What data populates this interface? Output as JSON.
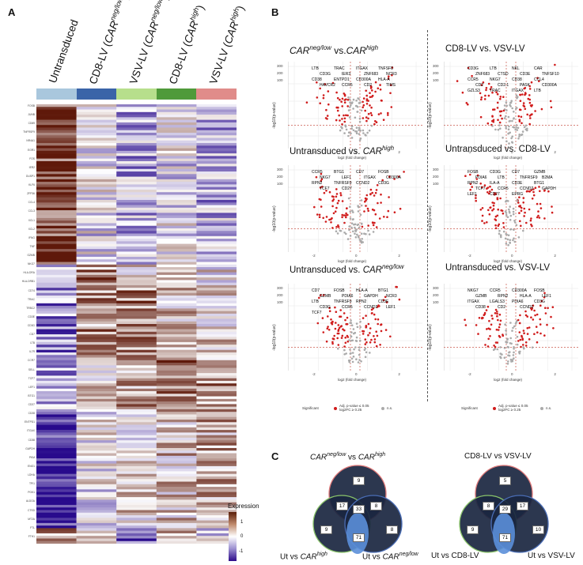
{
  "panelA": {
    "label": "A",
    "columns": [
      {
        "base": "Untransduced",
        "italic": "",
        "suffix": ""
      },
      {
        "base": "CD8-LV (",
        "italic": "CAR",
        "sup": "neg/low",
        "suffix": ")"
      },
      {
        "base": "VSV-LV (",
        "italic": "CAR",
        "sup": "neg/low",
        "suffix": ")"
      },
      {
        "base": "CD8-LV (",
        "italic": "CAR",
        "sup": "high",
        "suffix": ")"
      },
      {
        "base": "VSV-LV (",
        "italic": "CAR",
        "sup": "high",
        "suffix": ")"
      }
    ],
    "column_colors": [
      "#a9c7dd",
      "#3a64a8",
      "#b7df8c",
      "#4f9a3a",
      "#e08c8a"
    ],
    "row_names": [
      "FOSB",
      "JUNB",
      "CD69",
      "TNFRSF9",
      "NR4A1",
      "EGR1",
      "FOS",
      "IER2",
      "DUSP1",
      "KLF6",
      "ZFP36",
      "CCL4",
      "CCL3",
      "XCL1",
      "XCL2",
      "IFNG",
      "TNF",
      "GZMB",
      "NKG7",
      "HLA-DRA",
      "HLA-DRB1",
      "CD74",
      "TRAC",
      "TRBC2",
      "CD3E",
      "CD3G",
      "CD7",
      "LTB",
      "IL7R",
      "CCR7",
      "SELL",
      "TCF7",
      "LEF1",
      "BTG1",
      "CD27",
      "CD28",
      "ENTPD1",
      "ITGAX",
      "CD38",
      "GAPDH",
      "PKM",
      "ENO1",
      "LDHA",
      "TPI1",
      "PGK1",
      "ALDOA",
      "CTSD",
      "MT2A",
      "FTL",
      "FTH1"
    ],
    "legend": {
      "title": "Expression",
      "ticks": [
        "1",
        "0",
        "-1"
      ]
    }
  },
  "panelB": {
    "label": "B",
    "volcanoes": [
      {
        "id": "v1",
        "title_pre": "",
        "title_it1": "CAR",
        "title_sup1": "neg/low",
        "title_mid": " vs.",
        "title_it2": "CAR",
        "title_sup2": "high",
        "genes": [
          "LTB",
          "TRAC",
          "ITGAX",
          "TNFSF8",
          "CD3G",
          "IER3",
          "ZNF683",
          "NCR3",
          "CD38",
          "ENTPD1",
          "CD300A",
          "HLA-A",
          "HAVCR2",
          "CCR5",
          "CD2",
          "TIMS"
        ]
      },
      {
        "id": "v2",
        "title_pre": "CD8-LV vs. VSV-LV",
        "genes": [
          "CD3G",
          "LTB",
          "NKL",
          "CAR",
          "ZNF683",
          "CTSD",
          "CD3E",
          "TNFSF10",
          "CCR5",
          "NKG7",
          "CD38",
          "CCL4",
          "CD2",
          "CD2.1",
          "PASK",
          "CD300A",
          "GZLS3",
          "TRAC",
          "ITGAX",
          "LTB"
        ]
      },
      {
        "id": "v3",
        "title_pre": "Untransduced vs. ",
        "title_it2": "CAR",
        "title_sup2": "high",
        "genes": [
          "CCR5",
          "BTG1",
          "CD7",
          "FOSB",
          "NKG7",
          "LEF1",
          "ITGAX",
          "CD300A",
          "RPN2",
          "TNFRSF9",
          "CCND2",
          "CD3G",
          "TCF7",
          "CD27"
        ]
      },
      {
        "id": "v4",
        "title_pre": "Untransduced vs. CD8-LV",
        "genes": [
          "FOSB",
          "CD3G",
          "CD7",
          "GZMB",
          "PDIA6",
          "LTB",
          "TNFRSF9",
          "B2MA",
          "RPN2",
          "ILA-A",
          "CD3E",
          "BTG1",
          "TCF7",
          "CCR5",
          "CCND2",
          "GAPDH",
          "LEF1",
          "CD27",
          "EPRG"
        ]
      },
      {
        "id": "v5",
        "title_pre": "Untransduced vs. ",
        "title_it2": "CAR",
        "title_sup2": "neg/low",
        "genes": [
          "CD7",
          "FOSB",
          "HLA-A",
          "BTG1",
          "GZMB",
          "PDIA6",
          "GAPDH",
          "NCR3",
          "LTB",
          "TNFRSF9",
          "RPN2",
          "CD3E",
          "CD3G",
          "CCR5",
          "CCND2",
          "LEF1",
          "TCF7"
        ]
      },
      {
        "id": "v6",
        "title_pre": "Untransduced vs. VSV-LV",
        "genes": [
          "NKG7",
          "CCR5",
          "CD300A",
          "FOSB",
          "GZMB",
          "RPN2",
          "HLA-A",
          "LEF1",
          "ITGAX",
          "LGALS3",
          "PDIA6",
          "CD3G",
          "CD38",
          "CD2",
          "CCND2"
        ]
      }
    ],
    "axis": {
      "ylabel": "-log10(p-value)",
      "xlabel": "log2 (fold change)",
      "yticks": [
        "300",
        "200",
        "100",
        "0"
      ],
      "xticks": [
        "-2",
        "0",
        "2"
      ]
    },
    "legend": {
      "significant": "Significant",
      "sig_label": "Adj. p-value ≤ 0.05\nlog2FC ≥ 0.25",
      "ns_label": "n.s."
    }
  },
  "panelC": {
    "label": "C",
    "venns": [
      {
        "top_title_it": "CAR",
        "top_title_sup1": "neg/low",
        "top_title_mid": " vs ",
        "top_title_it2": "CAR",
        "top_title_sup2": "high",
        "left_label_pre": "Ut vs ",
        "left_label_it": "CAR",
        "left_label_sup": "high",
        "right_label_pre": "Ut vs ",
        "right_label_it": "CAR",
        "right_label_sup": "neg/low",
        "counts": {
          "top_only": 9,
          "top_left": 17,
          "top_right": 8,
          "center": 33,
          "left_only": 9,
          "right_only": 8,
          "left_right": 71
        }
      },
      {
        "top_title": "CD8-LV vs VSV-LV",
        "left_label": "Ut vs CD8-LV",
        "right_label": "Ut vs VSV-LV",
        "counts": {
          "top_only": 5,
          "top_left": 8,
          "top_right": 17,
          "center": 29,
          "left_only": 9,
          "right_only": 10,
          "left_right": 71
        }
      }
    ]
  }
}
